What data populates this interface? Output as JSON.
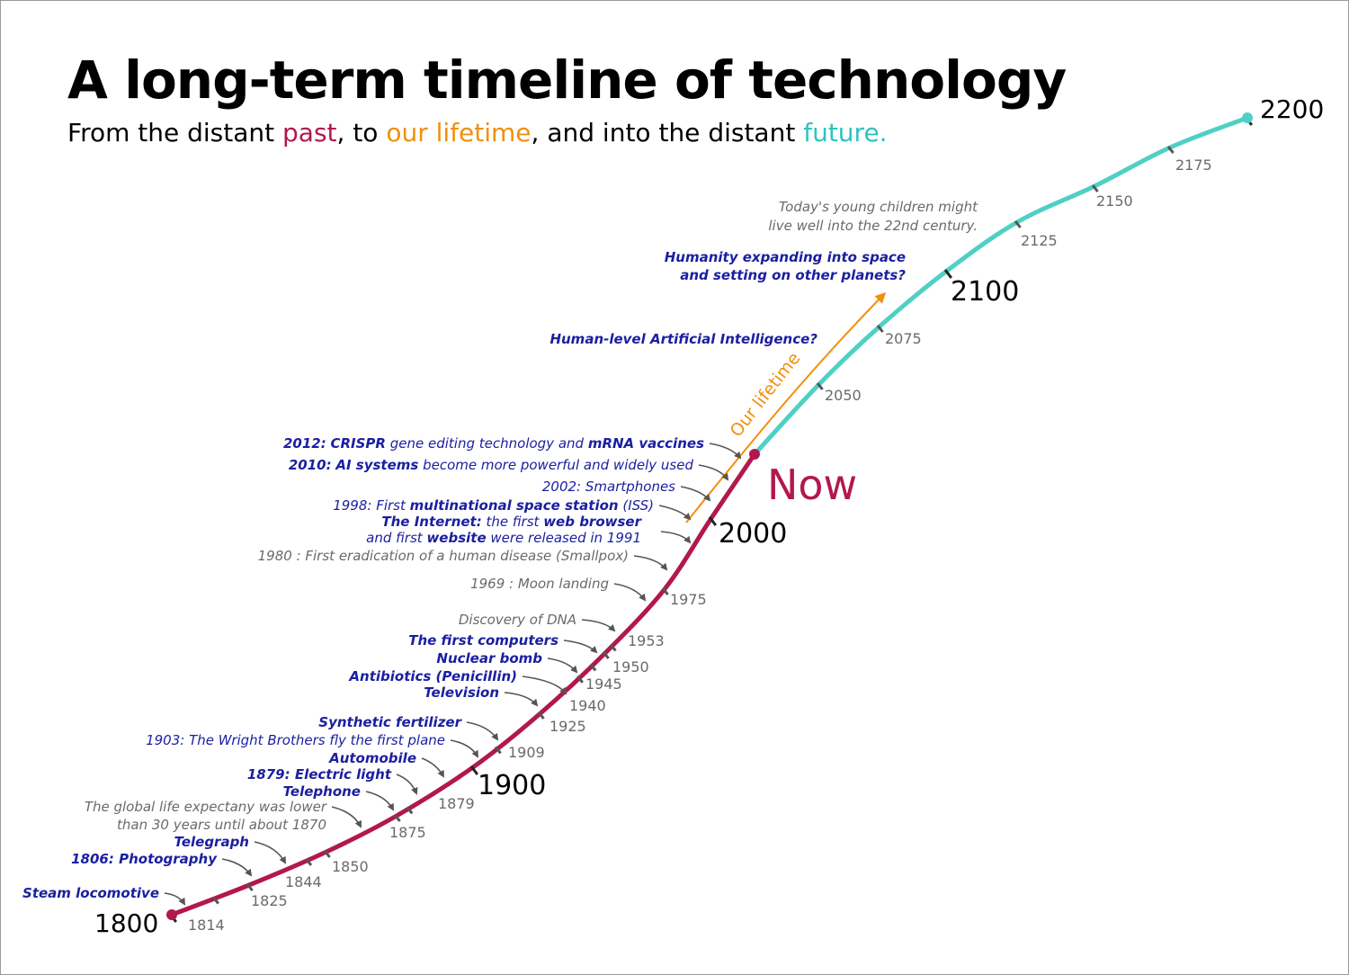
{
  "title": "A long-term timeline of technology",
  "subtitle": {
    "part1": "From the distant ",
    "past": "past",
    "part2": ", to ",
    "lifetime": "our lifetime",
    "part3": ", and into the distant ",
    "future": "future."
  },
  "colors": {
    "past": "#b3174f",
    "lifetime": "#f0900c",
    "future": "#4fd0c4",
    "event_highlight": "#1a1fa0",
    "event_muted": "#6a6a6a",
    "tick": "#555555"
  },
  "chart_data": {
    "type": "timeline",
    "start_label": "1800",
    "end_label": "2200",
    "now_label": "Now",
    "lifetime_label": "Our lifetime",
    "major_years": [
      "1800",
      "1900",
      "2000",
      "2100",
      "2200"
    ],
    "minor_years": [
      "1814",
      "1825",
      "1844",
      "1850",
      "1875",
      "1879",
      "1909",
      "1925",
      "1940",
      "1945",
      "1950",
      "1953",
      "1975",
      "2050",
      "2075",
      "2125",
      "2150",
      "2175"
    ],
    "events": [
      {
        "lines": [
          "Steam locomotive"
        ],
        "style": "highlight"
      },
      {
        "lines": [
          "1806: Photography"
        ],
        "style": "highlight"
      },
      {
        "lines": [
          "Telegraph"
        ],
        "style": "highlight"
      },
      {
        "lines": [
          "The global life expectany was lower",
          "than 30 years until about 1870"
        ],
        "style": "muted"
      },
      {
        "lines": [
          "Telephone"
        ],
        "style": "highlight"
      },
      {
        "lines": [
          "1879: Electric light"
        ],
        "style": "highlight"
      },
      {
        "lines": [
          "Automobile"
        ],
        "style": "highlight"
      },
      {
        "lines": [
          "1903: The Wright Brothers fly the first plane"
        ],
        "style": "regular"
      },
      {
        "lines": [
          "Synthetic fertilizer"
        ],
        "style": "highlight"
      },
      {
        "lines": [
          "Television"
        ],
        "style": "highlight"
      },
      {
        "lines": [
          "Antibiotics (Penicillin)"
        ],
        "style": "highlight"
      },
      {
        "lines": [
          "Nuclear bomb"
        ],
        "style": "highlight"
      },
      {
        "lines": [
          "The first computers"
        ],
        "style": "highlight"
      },
      {
        "lines": [
          "Discovery of DNA"
        ],
        "style": "muted"
      },
      {
        "lines": [
          "1969 : Moon landing"
        ],
        "style": "muted"
      },
      {
        "lines": [
          "1980 : First eradication of a human disease (Smallpox)"
        ],
        "style": "muted"
      },
      {
        "lines": [
          "The Internet: the first web browser",
          "and first website were released in 1991"
        ],
        "style": "regular"
      },
      {
        "lines": [
          "1998: First multinational space station (ISS)"
        ],
        "style": "regular"
      },
      {
        "lines": [
          "2002: Smartphones"
        ],
        "style": "regular"
      },
      {
        "lines": [
          "2010: AI systems become more powerful and widely used"
        ],
        "style": "regular"
      },
      {
        "lines": [
          "2012: CRISPR gene editing technology and mRNA vaccines"
        ],
        "style": "regular"
      },
      {
        "lines": [
          "Human-level Artificial Intelligence?"
        ],
        "style": "highlight"
      },
      {
        "lines": [
          "Humanity expanding into space",
          "and setting on other planets?"
        ],
        "style": "highlight"
      },
      {
        "lines": [
          "Today's young children might",
          "live well into the 22nd century."
        ],
        "style": "muted"
      }
    ]
  }
}
